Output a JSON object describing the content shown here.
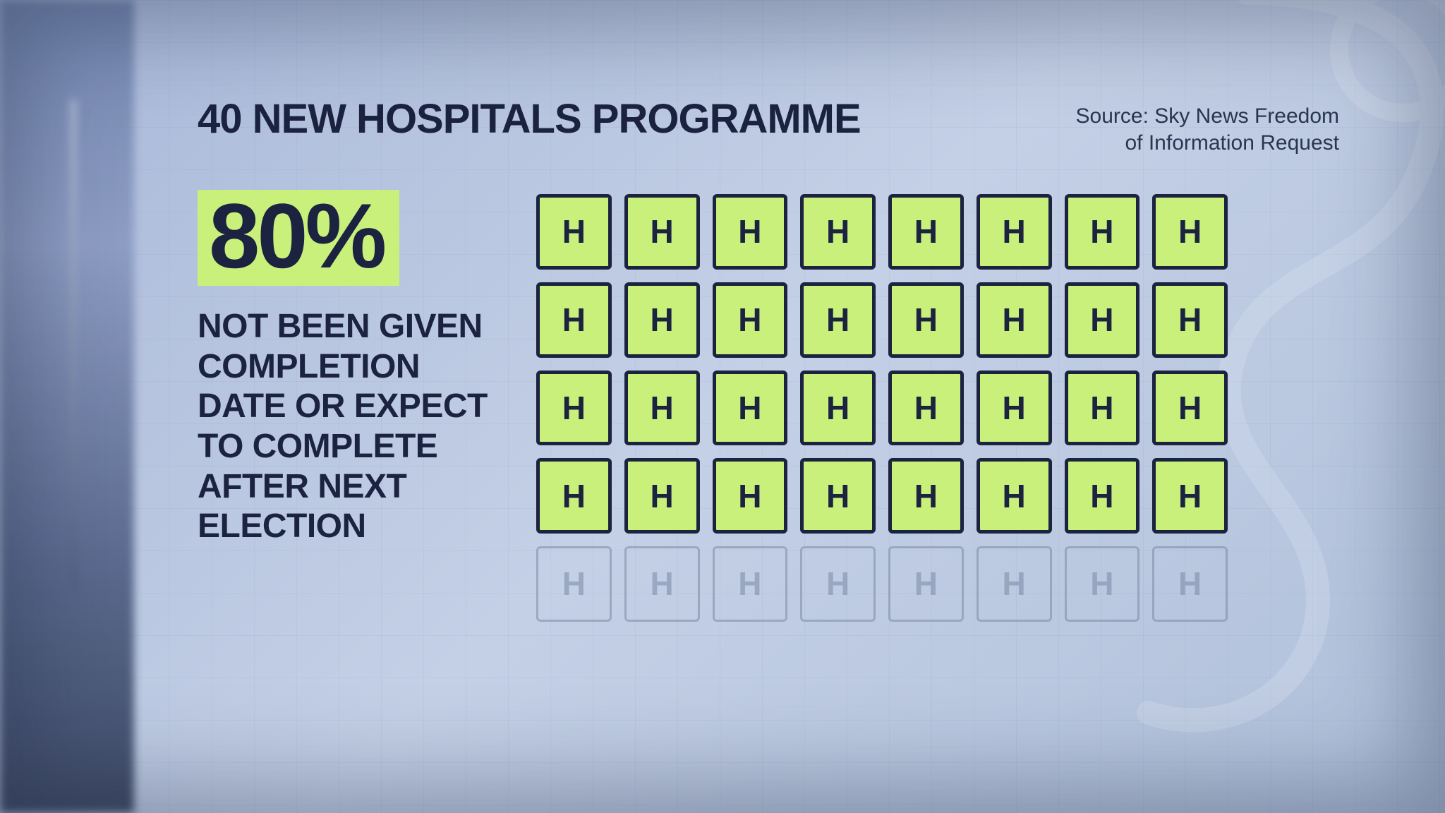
{
  "title": "40 NEW HOSPITALS PROGRAMME",
  "source_line1": "Source: Sky News Freedom",
  "source_line2": "of Information Request",
  "percent": "80%",
  "description": "NOT BEEN GIVEN COMPLETION DATE OR EXPECT TO COMPLETE AFTER NEXT ELECTION",
  "infographic": {
    "type": "pictogram-grid",
    "rows": 5,
    "cols": 8,
    "total": 40,
    "highlighted": 32,
    "glyph": "H",
    "glyph_fontsize": 46,
    "tile_active": {
      "fill": "#c9f07a",
      "border": "#1c2340",
      "text": "#1c2340"
    },
    "tile_inactive": {
      "fill": "transparent",
      "border": "#7b89a6",
      "text": "#7b89a6",
      "opacity": 0.55
    }
  },
  "style": {
    "title_color": "#1c2340",
    "title_fontsize": 58,
    "source_color": "#2a3550",
    "source_fontsize": 30,
    "percent_bg": "#c9f07a",
    "percent_color": "#1c2340",
    "percent_fontsize": 130,
    "desc_color": "#1c2340",
    "desc_fontsize": 48,
    "desc_maxwidth": 420
  }
}
